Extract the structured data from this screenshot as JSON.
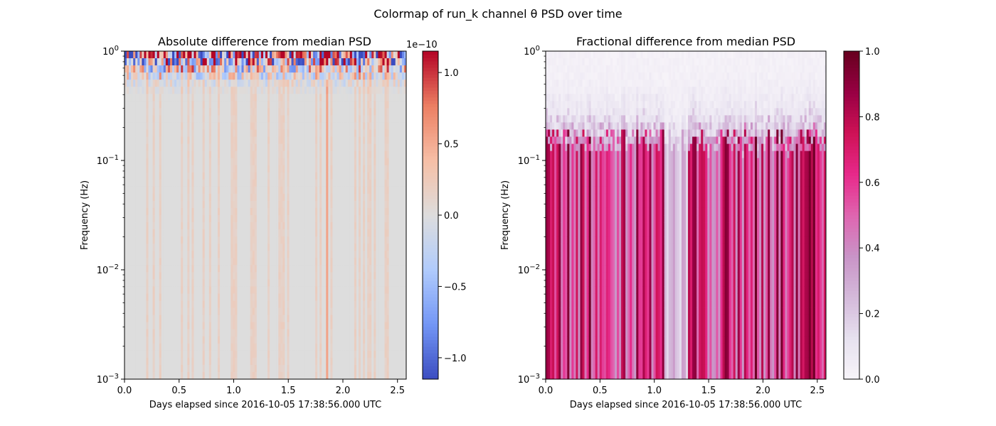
{
  "figure": {
    "suptitle": "Colormap of run_k channel θ PSD over time"
  },
  "chart_data": [
    {
      "type": "heatmap",
      "title": "Absolute difference from median PSD",
      "xlabel": "Days elapsed since 2016-10-05 17:38:56.000 UTC",
      "ylabel": "Frequency (Hz)",
      "xlim": [
        0.0,
        2.58
      ],
      "ylim": [
        0.001,
        1.0
      ],
      "y_scale": "log",
      "x_ticks": [
        "0.0",
        "0.5",
        "1.0",
        "1.5",
        "2.0",
        "2.5"
      ],
      "x_tick_values": [
        0.0,
        0.5,
        1.0,
        1.5,
        2.0,
        2.5
      ],
      "y_ticks": [
        {
          "base": "10",
          "exp": "−3",
          "value": 0.001
        },
        {
          "base": "10",
          "exp": "−2",
          "value": 0.01
        },
        {
          "base": "10",
          "exp": "−1",
          "value": 0.1
        },
        {
          "base": "10",
          "exp": "0",
          "value": 1.0
        }
      ],
      "colormap": "coolwarm",
      "colormap_stops": [
        "#3b4cc0",
        "#7396f5",
        "#b0cbfc",
        "#dddddd",
        "#f6bfa6",
        "#ec7f63",
        "#b40426"
      ],
      "colorbar": {
        "range": [
          -1.15,
          1.15
        ],
        "ticks": [
          "−1.0",
          "−0.5",
          "0.0",
          "0.5",
          "1.0"
        ],
        "tick_values": [
          -1.0,
          -0.5,
          0.0,
          0.5,
          1.0
        ],
        "offset_text": "1e−10"
      },
      "features": {
        "strong_column_day": 1.86,
        "strong_column_value": 0.55,
        "high_freq_noise_above_hz": 0.5
      }
    },
    {
      "type": "heatmap",
      "title": "Fractional difference from median PSD",
      "xlabel": "Days elapsed since 2016-10-05 17:38:56.000 UTC",
      "ylabel": "Frequency (Hz)",
      "xlim": [
        0.0,
        2.58
      ],
      "ylim": [
        0.001,
        1.0
      ],
      "y_scale": "log",
      "x_ticks": [
        "0.0",
        "0.5",
        "1.0",
        "1.5",
        "2.0",
        "2.5"
      ],
      "x_tick_values": [
        0.0,
        0.5,
        1.0,
        1.5,
        2.0,
        2.5
      ],
      "y_ticks": [
        {
          "base": "10",
          "exp": "−3",
          "value": 0.001
        },
        {
          "base": "10",
          "exp": "−2",
          "value": 0.01
        },
        {
          "base": "10",
          "exp": "−1",
          "value": 0.1
        },
        {
          "base": "10",
          "exp": "0",
          "value": 1.0
        }
      ],
      "colormap": "PuRd",
      "colormap_stops": [
        "#f7f4f9",
        "#e7e1ef",
        "#d4b9da",
        "#c994c7",
        "#df65b0",
        "#e7298a",
        "#ce1256",
        "#980043",
        "#67001f"
      ],
      "colorbar": {
        "range": [
          0.0,
          1.0
        ],
        "ticks": [
          "0.0",
          "0.2",
          "0.4",
          "0.6",
          "0.8",
          "1.0"
        ],
        "tick_values": [
          0.0,
          0.2,
          0.4,
          0.6,
          0.8,
          1.0
        ]
      },
      "features": {
        "transition_freq_hz": 0.15,
        "low_value_band_days": [
          1.1,
          1.3
        ]
      }
    }
  ]
}
